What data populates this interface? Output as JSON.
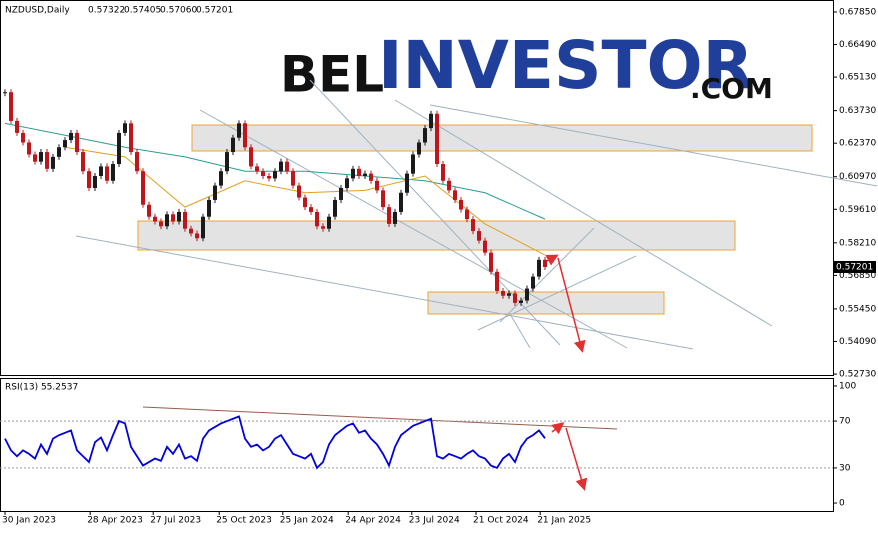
{
  "chart_data": [
    {
      "type": "candle",
      "symbol": "NZDUSD,Daily",
      "ohlc": [
        "0.57322",
        "0.57405",
        "0.57060",
        "0.57201"
      ],
      "watermark": [
        "BEL",
        "INVESTOR",
        ".COM"
      ],
      "values": [
        0.645,
        0.633,
        0.628,
        0.624,
        0.619,
        0.616,
        0.62,
        0.613,
        0.618,
        0.622,
        0.625,
        0.628,
        0.62,
        0.612,
        0.605,
        0.61,
        0.614,
        0.608,
        0.615,
        0.628,
        0.632,
        0.62,
        0.612,
        0.598,
        0.593,
        0.591,
        0.589,
        0.594,
        0.591,
        0.595,
        0.588,
        0.586,
        0.584,
        0.593,
        0.6,
        0.606,
        0.612,
        0.62,
        0.626,
        0.632,
        0.622,
        0.614,
        0.612,
        0.61,
        0.609,
        0.612,
        0.616,
        0.612,
        0.606,
        0.601,
        0.597,
        0.595,
        0.589,
        0.588,
        0.593,
        0.6,
        0.605,
        0.609,
        0.613,
        0.61,
        0.611,
        0.608,
        0.604,
        0.597,
        0.59,
        0.595,
        0.603,
        0.611,
        0.619,
        0.624,
        0.63,
        0.636,
        0.615,
        0.608,
        0.604,
        0.6,
        0.596,
        0.592,
        0.587,
        0.583,
        0.578,
        0.57,
        0.562,
        0.56,
        0.561,
        0.557,
        0.558,
        0.563,
        0.568,
        0.575,
        0.572
      ],
      "up_color": "#1a1a1a",
      "down_color": "#c0161b",
      "moving_averages": [
        {
          "color": "#2a9d8f",
          "x": [
            0,
            10,
            20,
            30,
            40,
            50,
            60,
            70,
            80,
            90
          ],
          "values": [
            0.632,
            0.627,
            0.622,
            0.618,
            0.612,
            0.612,
            0.61,
            0.608,
            0.603,
            0.592
          ]
        },
        {
          "color": "#e0a020",
          "x": [
            10,
            20,
            30,
            40,
            50,
            60,
            70,
            80,
            90
          ],
          "values": [
            0.622,
            0.618,
            0.597,
            0.608,
            0.603,
            0.604,
            0.61,
            0.59,
            0.577
          ]
        }
      ],
      "current_price": {
        "value": 0.57201,
        "label": "0.57201"
      },
      "ylim": [
        0.5269,
        0.6835
      ],
      "yticks": [
        {
          "value": 0.6785,
          "label": "0.67850"
        },
        {
          "value": 0.6649,
          "label": "0.66490"
        },
        {
          "value": 0.6513,
          "label": "0.65130"
        },
        {
          "value": 0.6373,
          "label": "0.63730"
        },
        {
          "value": 0.6237,
          "label": "0.62370"
        },
        {
          "value": 0.6097,
          "label": "0.60970"
        },
        {
          "value": 0.5961,
          "label": "0.59610"
        },
        {
          "value": 0.5821,
          "label": "0.58210"
        },
        {
          "value": 0.5685,
          "label": "0.56850"
        },
        {
          "value": 0.5545,
          "label": "0.55450"
        },
        {
          "value": 0.5409,
          "label": "0.54090"
        },
        {
          "value": 0.5273,
          "label": "0.52730"
        }
      ],
      "xticks": [
        {
          "value": 0,
          "label": "30 Jan 2023"
        },
        {
          "value": 14.2,
          "label": "28 Apr 2023"
        },
        {
          "value": 24.7,
          "label": "27 Jul 2023"
        },
        {
          "value": 35.7,
          "label": "25 Oct 2023"
        },
        {
          "value": 46.3,
          "label": "25 Jan 2024"
        },
        {
          "value": 57.2,
          "label": "24 Apr 2024"
        },
        {
          "value": 67.8,
          "label": "23 Jul 2024"
        },
        {
          "value": 78.5,
          "label": "21 Oct 2024"
        },
        {
          "value": 89.2,
          "label": "21 Jan 2025"
        }
      ]
    },
    {
      "type": "line",
      "title": "RSI(13) 55.2537",
      "color": "#0000e0",
      "values": [
        55,
        45,
        40,
        45,
        42,
        38,
        50,
        42,
        55,
        58,
        60,
        62,
        45,
        40,
        35,
        52,
        56,
        45,
        58,
        70,
        68,
        48,
        40,
        32,
        35,
        38,
        36,
        48,
        42,
        50,
        38,
        40,
        36,
        55,
        62,
        65,
        68,
        70,
        72,
        74,
        55,
        48,
        50,
        45,
        48,
        55,
        58,
        50,
        42,
        40,
        38,
        42,
        30,
        35,
        50,
        58,
        62,
        66,
        68,
        60,
        62,
        55,
        50,
        42,
        32,
        48,
        58,
        62,
        66,
        68,
        70,
        72,
        40,
        38,
        42,
        40,
        38,
        42,
        45,
        40,
        38,
        32,
        30,
        38,
        42,
        35,
        48,
        55,
        58,
        62,
        55.2537
      ],
      "ylim": [
        -6.8,
        106.8
      ],
      "yticks": [
        100,
        70,
        30,
        0
      ],
      "levels": [
        70,
        30
      ]
    }
  ]
}
